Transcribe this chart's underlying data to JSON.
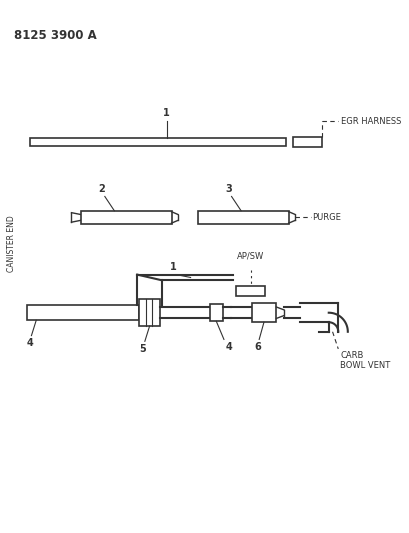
{
  "title": "8125 3900 A",
  "bg_color": "#ffffff",
  "line_color": "#333333",
  "label_color": "#333333",
  "canister_end_label": "CANISTER END",
  "egr_label": "EGR HARNESS",
  "purge_label": "PURGE",
  "apsw_label": "AP/SW",
  "carb_label": "CARB\nBOWL VENT",
  "fig_width": 4.1,
  "fig_height": 5.33,
  "dpi": 100
}
